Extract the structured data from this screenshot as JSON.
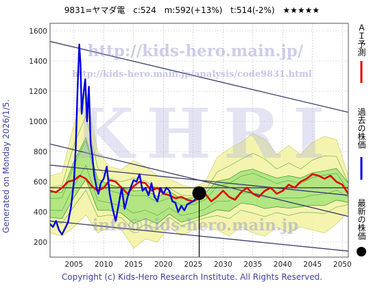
{
  "header": {
    "code_name": "9831=ヤマダ電",
    "current": "c:524",
    "ma": "m:592(+13%)",
    "target": "t:514(-2%)",
    "rating": "★★★★★"
  },
  "watermarks": {
    "url_big": "http://kids-hero.main.jp/",
    "url_small": "http://kids-hero.main.jp/analysis/code9831.html",
    "logo": "KHRI",
    "email": "info@kids-hero.main.jp"
  },
  "side_text": {
    "generated": "Generated on Monday 2026/1/5.",
    "copyright": "Copyright (c) Kids-Hero Research Institute. All Rights Reserved."
  },
  "legend": {
    "ai_forecast": "ＡＩ予測",
    "past_price": "過去の株価",
    "latest_price": "最新の株価"
  },
  "colors": {
    "ai_forecast": "#e00000",
    "past_price": "#0000e0",
    "latest_price": "#000000",
    "band_green": "#5ccc3c",
    "band_yellow": "#f2f2a0",
    "channel": "#3a3a6a"
  },
  "chart_data": {
    "type": "line",
    "xlim": [
      2001,
      2051
    ],
    "ylim": [
      100,
      1650
    ],
    "x_ticks": [
      2005,
      2010,
      2015,
      2020,
      2025,
      2030,
      2035,
      2040,
      2045,
      2050
    ],
    "y_ticks": [
      200,
      400,
      600,
      800,
      1000,
      1200,
      1400,
      1600
    ],
    "grid": true,
    "latest_point": {
      "x": 2026.0,
      "y": 524
    },
    "past_price": {
      "x": [
        2001.0,
        2001.5,
        2002.0,
        2002.5,
        2003.0,
        2003.5,
        2004.0,
        2004.5,
        2005.0,
        2005.3,
        2005.6,
        2005.9,
        2006.1,
        2006.3,
        2006.6,
        2006.9,
        2007.2,
        2007.5,
        2007.8,
        2008.1,
        2008.4,
        2008.8,
        2009.1,
        2009.5,
        2010.0,
        2010.5,
        2011.0,
        2011.5,
        2012.0,
        2012.5,
        2013.0,
        2013.5,
        2014.0,
        2014.5,
        2015.0,
        2015.5,
        2016.0,
        2016.5,
        2017.0,
        2017.5,
        2018.0,
        2018.5,
        2019.0,
        2019.5,
        2020.0,
        2020.5,
        2021.0,
        2021.5,
        2022.0,
        2022.5,
        2023.0,
        2023.5,
        2024.0,
        2024.5,
        2025.0,
        2025.5,
        2026.0
      ],
      "y": [
        320,
        300,
        340,
        280,
        250,
        290,
        330,
        430,
        600,
        820,
        1200,
        1510,
        1380,
        1050,
        1180,
        1280,
        1000,
        1230,
        850,
        770,
        640,
        560,
        520,
        590,
        620,
        700,
        520,
        420,
        340,
        450,
        560,
        420,
        500,
        560,
        610,
        600,
        650,
        540,
        560,
        510,
        590,
        500,
        470,
        560,
        520,
        560,
        540,
        470,
        460,
        400,
        440,
        410,
        450,
        460,
        470,
        490,
        524
      ]
    },
    "ai_forecast": {
      "x": [
        2001,
        2002,
        2003,
        2004,
        2005,
        2006,
        2007,
        2008,
        2009,
        2010,
        2011,
        2012,
        2013,
        2014,
        2015,
        2016,
        2017,
        2018,
        2019,
        2020,
        2021,
        2022,
        2023,
        2024,
        2025,
        2026,
        2027,
        2028,
        2029,
        2030,
        2031,
        2032,
        2033,
        2034,
        2035,
        2036,
        2037,
        2038,
        2039,
        2040,
        2041,
        2042,
        2043,
        2044,
        2045,
        2046,
        2047,
        2048,
        2049,
        2050,
        2051
      ],
      "y": [
        540,
        530,
        560,
        600,
        610,
        640,
        620,
        570,
        540,
        560,
        610,
        600,
        560,
        520,
        570,
        600,
        590,
        540,
        560,
        520,
        510,
        490,
        500,
        480,
        470,
        490,
        520,
        470,
        500,
        540,
        500,
        480,
        530,
        560,
        520,
        500,
        540,
        560,
        520,
        540,
        580,
        560,
        600,
        620,
        650,
        640,
        620,
        640,
        600,
        580,
        520
      ]
    },
    "band": {
      "x": [
        2001,
        2003,
        2005,
        2007,
        2009,
        2011,
        2013,
        2015,
        2017,
        2019,
        2021,
        2023,
        2025,
        2027,
        2029,
        2031,
        2033,
        2035,
        2037,
        2039,
        2041,
        2043,
        2045,
        2047,
        2049,
        2051
      ],
      "upper": [
        640,
        660,
        980,
        1200,
        800,
        700,
        680,
        740,
        700,
        640,
        620,
        580,
        560,
        600,
        760,
        820,
        860,
        920,
        880,
        780,
        840,
        780,
        860,
        900,
        880,
        640
      ],
      "lower": [
        260,
        240,
        300,
        380,
        260,
        300,
        280,
        160,
        220,
        200,
        300,
        240,
        280,
        300,
        280,
        240,
        300,
        260,
        240,
        300,
        260,
        300,
        280,
        260,
        320,
        400
      ]
    },
    "channel_lines": [
      {
        "x": [
          2001,
          2051
        ],
        "y": [
          1530,
          1060
        ]
      },
      {
        "x": [
          2001,
          2051
        ],
        "y": [
          850,
          370
        ]
      },
      {
        "x": [
          2001,
          2051
        ],
        "y": [
          710,
          510
        ]
      },
      {
        "x": [
          2001,
          2051
        ],
        "y": [
          560,
          560
        ]
      },
      {
        "x": [
          2001,
          2051
        ],
        "y": [
          340,
          140
        ]
      }
    ],
    "cursor_line": {
      "x": 2026.0,
      "y": [
        100,
        524
      ]
    }
  }
}
